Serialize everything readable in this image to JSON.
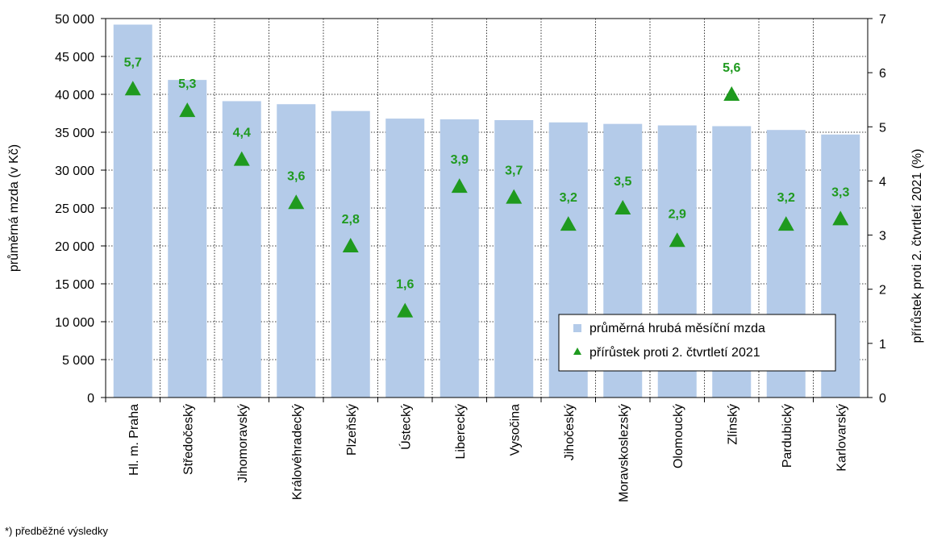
{
  "chart_data": {
    "type": "bar",
    "categories": [
      "Hl. m. Praha",
      "Středočeský",
      "Jihomoravský",
      "Královéhradecký",
      "Plzeňský",
      "Ústecký",
      "Liberecký",
      "Vysočina",
      "Jihočeský",
      "Moravskoslezský",
      "Olomoucký",
      "Zlínský",
      "Pardubický",
      "Karlovarský"
    ],
    "series": [
      {
        "name": "průměrná hrubá měsíční mzda",
        "type": "bar",
        "axis": "left",
        "color": "#b4cbe9",
        "values": [
          49200,
          41900,
          39100,
          38700,
          37800,
          36800,
          36700,
          36600,
          36300,
          36100,
          35900,
          35800,
          35300,
          34700
        ]
      },
      {
        "name": "přírůstek proti 2. čtvrtletí 2021",
        "type": "scatter",
        "axis": "right",
        "color": "#1f9a1f",
        "marker": "triangle",
        "values": [
          5.7,
          5.3,
          4.4,
          3.6,
          2.8,
          1.6,
          3.9,
          3.7,
          3.2,
          3.5,
          2.9,
          5.6,
          3.2,
          3.3
        ],
        "labels": [
          "5,7",
          "5,3",
          "4,4",
          "3,6",
          "2,8",
          "1,6",
          "3,9",
          "3,7",
          "3,2",
          "3,5",
          "2,9",
          "5,6",
          "3,2",
          "3,3"
        ]
      }
    ],
    "ylabel": "průměrná mzda (v Kč)",
    "y2label": "přírůstek proti 2. čtvrtletí 2021 (%)",
    "ylim": [
      0,
      50000
    ],
    "y2lim": [
      0,
      7
    ],
    "yticks": [
      "0",
      "5 000",
      "10 000",
      "15 000",
      "20 000",
      "25 000",
      "30 000",
      "35 000",
      "40 000",
      "45 000",
      "50 000"
    ],
    "y2ticks": [
      "0",
      "1",
      "2",
      "3",
      "4",
      "5",
      "6",
      "7"
    ],
    "grid": true,
    "legend": "bottom-right",
    "footnote": "*) předběžné výsledky"
  }
}
